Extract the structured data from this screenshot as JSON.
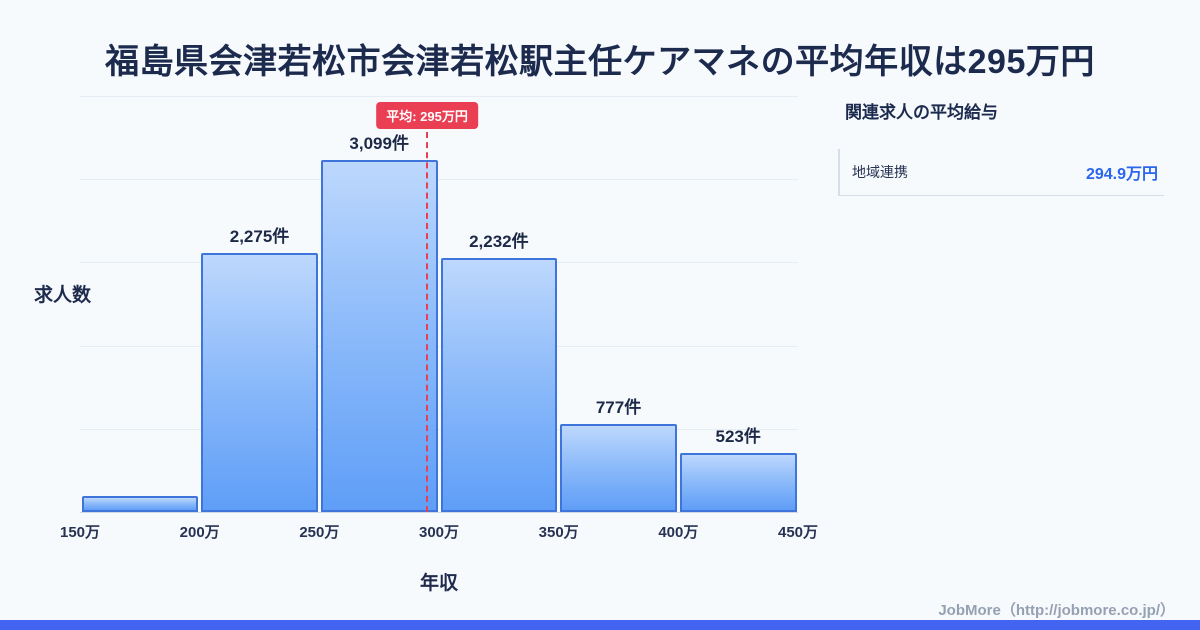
{
  "header": {
    "title": "福島県会津若松市会津若松駅主任ケアマネの平均年収は295万円"
  },
  "chart_data": {
    "type": "bar",
    "title": "福島県会津若松市会津若松駅主任ケアマネの平均年収は295万円",
    "xlabel": "年収",
    "ylabel": "求人数",
    "x_ticks": [
      "150万",
      "200万",
      "250万",
      "300万",
      "350万",
      "400万",
      "450万"
    ],
    "x_range": [
      150,
      450
    ],
    "categories": [
      "150万-200万",
      "200万-250万",
      "250万-300万",
      "300万-350万",
      "350万-400万",
      "400万-450万"
    ],
    "values": [
      140,
      2275,
      3099,
      2232,
      777,
      523
    ],
    "labels": [
      "",
      "2,275件",
      "3,099件",
      "2,232件",
      "777件",
      "523件"
    ],
    "ylim": [
      0,
      3660
    ],
    "grid": "horizontal",
    "legend": "none",
    "mean": {
      "value_man_yen": 295,
      "label": "平均: 295万円"
    }
  },
  "side_panel": {
    "title": "関連求人の平均給与",
    "items": [
      {
        "name": "地域連携",
        "salary": "294.9万円"
      }
    ]
  },
  "footer": {
    "credit": "JobMore（http://jobmore.co.jp/）"
  },
  "colors": {
    "background": "#f7fafd",
    "title_text": "#1c2a4e",
    "bar_fill_top": "#bdd8fd",
    "bar_fill_bottom": "#5f9ef7",
    "bar_border": "#3f74da",
    "gridline": "#e7edf5",
    "mean_red": "#ea3e53",
    "salary_blue": "#2b66ee",
    "footer_gray": "#95a0b2",
    "bottom_strip": "#4364f1"
  }
}
